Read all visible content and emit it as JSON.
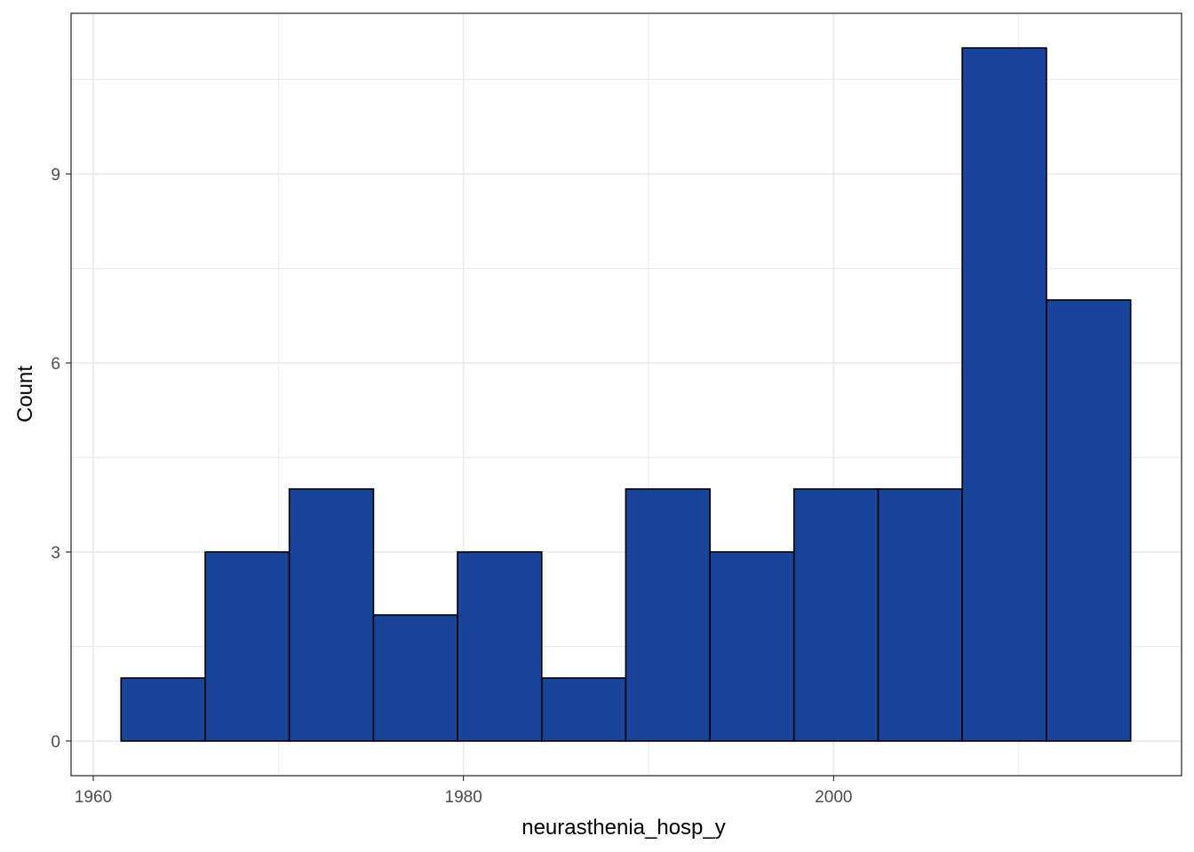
{
  "chart_data": {
    "type": "bar",
    "subtype": "histogram",
    "title": "",
    "xlabel": "neurasthenia_hosp_y",
    "ylabel": "Count",
    "bins": [
      {
        "x0": 1961.5,
        "x1": 1966.05,
        "count": 1
      },
      {
        "x0": 1966.05,
        "x1": 1970.59,
        "count": 3
      },
      {
        "x0": 1970.59,
        "x1": 1975.14,
        "count": 4
      },
      {
        "x0": 1975.14,
        "x1": 1979.68,
        "count": 2
      },
      {
        "x0": 1979.68,
        "x1": 1984.23,
        "count": 3
      },
      {
        "x0": 1984.23,
        "x1": 1988.77,
        "count": 1
      },
      {
        "x0": 1988.77,
        "x1": 1993.32,
        "count": 4
      },
      {
        "x0": 1993.32,
        "x1": 1997.86,
        "count": 3
      },
      {
        "x0": 1997.86,
        "x1": 2002.41,
        "count": 4
      },
      {
        "x0": 2002.41,
        "x1": 2006.95,
        "count": 4
      },
      {
        "x0": 2006.95,
        "x1": 2011.5,
        "count": 11
      },
      {
        "x0": 2011.5,
        "x1": 2016.05,
        "count": 7
      }
    ],
    "xlim": [
      1958.8,
      2018.8
    ],
    "ylim": [
      -0.55,
      11.55
    ],
    "x_ticks": [
      1960,
      1980,
      2000
    ],
    "y_ticks": [
      0,
      3,
      6,
      9
    ],
    "grid": true,
    "colors": {
      "bar_fill": "#1a4499",
      "bar_stroke": "#000000",
      "grid": "#ebebeb",
      "panel_border": "#333333"
    }
  }
}
